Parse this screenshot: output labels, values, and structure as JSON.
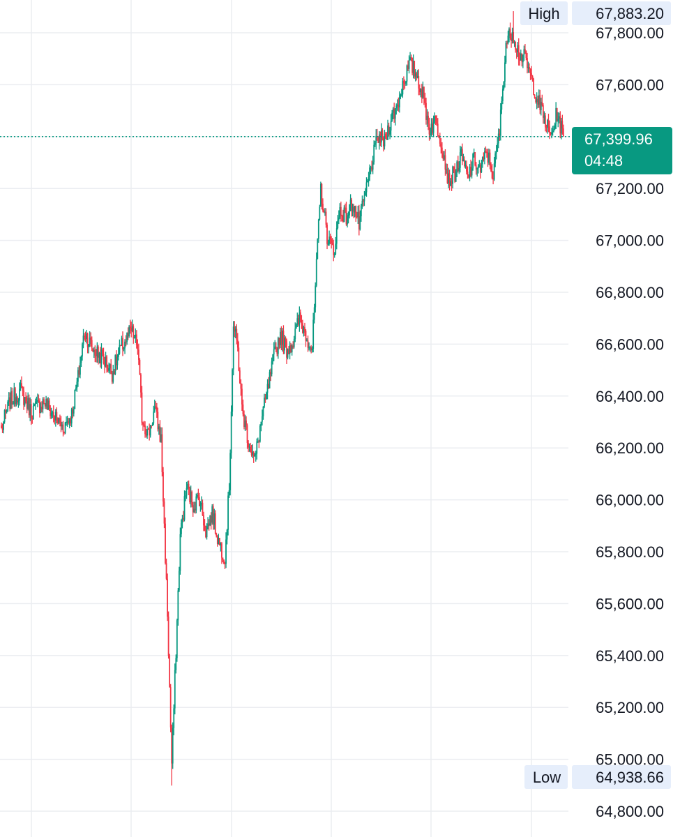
{
  "chart_data": {
    "type": "candlestick",
    "title": "",
    "xlabel": "",
    "ylabel": "",
    "ylim": [
      64750,
      67950
    ],
    "y_ticks": [
      "64,800.00",
      "65,000.00",
      "65,200.00",
      "65,400.00",
      "65,600.00",
      "65,800.00",
      "66,000.00",
      "66,200.00",
      "66,400.00",
      "66,600.00",
      "66,800.00",
      "67,000.00",
      "67,200.00",
      "67,400.00",
      "67,600.00",
      "67,800.00"
    ],
    "y_tick_values": [
      64800,
      65000,
      65200,
      65400,
      65600,
      65800,
      66000,
      66200,
      66400,
      66600,
      66800,
      67000,
      67200,
      67400,
      67600,
      67800
    ],
    "grid": true,
    "colors": {
      "up": "#089981",
      "down": "#F23645",
      "grid": "#EBEDF1",
      "badge_bg": "#E6EEFB",
      "current_bg": "#089981"
    },
    "high": {
      "label": "High",
      "value_text": "67,883.20",
      "value": 67883.2
    },
    "low": {
      "label": "Low",
      "value_text": "64,938.66",
      "value": 64938.66
    },
    "current": {
      "value_text": "67,399.96",
      "value": 67399.96,
      "countdown": "04:48"
    },
    "waypoints": [
      [
        0,
        66270
      ],
      [
        8,
        66380
      ],
      [
        18,
        66420
      ],
      [
        28,
        66340
      ],
      [
        40,
        66380
      ],
      [
        50,
        66320
      ],
      [
        58,
        66280
      ],
      [
        66,
        66330
      ],
      [
        72,
        66470
      ],
      [
        78,
        66650
      ],
      [
        86,
        66580
      ],
      [
        95,
        66550
      ],
      [
        104,
        66490
      ],
      [
        113,
        66590
      ],
      [
        122,
        66650
      ],
      [
        128,
        66590
      ],
      [
        132,
        66320
      ],
      [
        138,
        66250
      ],
      [
        144,
        66350
      ],
      [
        150,
        66230
      ],
      [
        156,
        65560
      ],
      [
        160,
        64980
      ],
      [
        164,
        65420
      ],
      [
        168,
        65860
      ],
      [
        174,
        66050
      ],
      [
        180,
        65980
      ],
      [
        186,
        66010
      ],
      [
        192,
        65880
      ],
      [
        198,
        65950
      ],
      [
        204,
        65840
      ],
      [
        210,
        65780
      ],
      [
        214,
        66050
      ],
      [
        218,
        66670
      ],
      [
        222,
        66580
      ],
      [
        226,
        66350
      ],
      [
        232,
        66230
      ],
      [
        238,
        66150
      ],
      [
        244,
        66300
      ],
      [
        250,
        66420
      ],
      [
        256,
        66550
      ],
      [
        262,
        66640
      ],
      [
        268,
        66580
      ],
      [
        274,
        66610
      ],
      [
        280,
        66700
      ],
      [
        286,
        66640
      ],
      [
        292,
        66580
      ],
      [
        296,
        66900
      ],
      [
        300,
        67200
      ],
      [
        306,
        67020
      ],
      [
        312,
        66950
      ],
      [
        318,
        67120
      ],
      [
        324,
        67090
      ],
      [
        330,
        67150
      ],
      [
        336,
        67060
      ],
      [
        342,
        67180
      ],
      [
        348,
        67300
      ],
      [
        354,
        67400
      ],
      [
        360,
        67380
      ],
      [
        366,
        67470
      ],
      [
        372,
        67520
      ],
      [
        378,
        67620
      ],
      [
        384,
        67680
      ],
      [
        390,
        67640
      ],
      [
        396,
        67560
      ],
      [
        402,
        67430
      ],
      [
        408,
        67460
      ],
      [
        414,
        67370
      ],
      [
        420,
        67230
      ],
      [
        426,
        67260
      ],
      [
        432,
        67320
      ],
      [
        438,
        67240
      ],
      [
        444,
        67310
      ],
      [
        450,
        67270
      ],
      [
        456,
        67340
      ],
      [
        462,
        67250
      ],
      [
        468,
        67420
      ],
      [
        474,
        67760
      ],
      [
        480,
        67810
      ],
      [
        486,
        67720
      ],
      [
        492,
        67700
      ],
      [
        498,
        67620
      ],
      [
        504,
        67540
      ],
      [
        510,
        67470
      ],
      [
        516,
        67400
      ],
      [
        522,
        67490
      ],
      [
        528,
        67400
      ]
    ]
  }
}
